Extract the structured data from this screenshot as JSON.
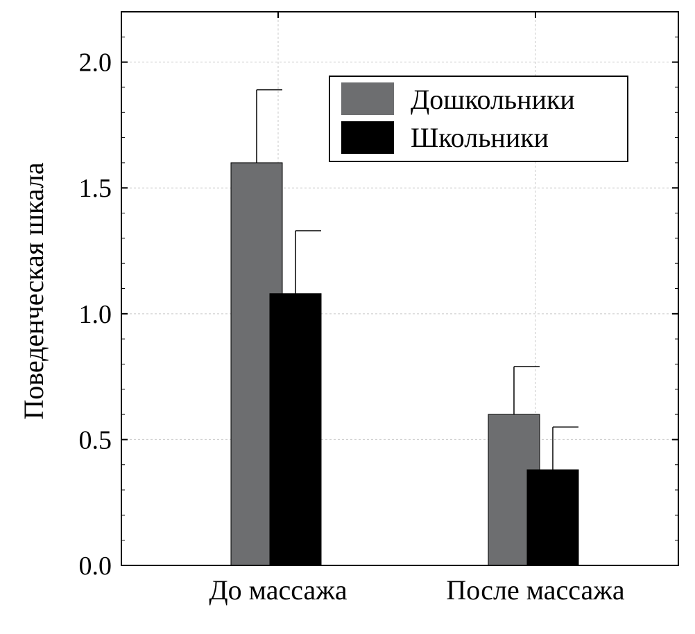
{
  "chart_data": {
    "type": "bar",
    "categories": [
      "До массажа",
      "После массажа"
    ],
    "series": [
      {
        "name": "Дошкольники",
        "color": "#6d6e70",
        "values": [
          1.6,
          0.6
        ],
        "error_upper": [
          1.89,
          0.79
        ]
      },
      {
        "name": "Школьники",
        "color": "#000000",
        "values": [
          1.08,
          0.38
        ],
        "error_upper": [
          1.33,
          0.55
        ]
      }
    ],
    "xlabel": "",
    "ylabel": "Поведенческая шкала",
    "ylim": [
      0,
      2.2
    ],
    "yticks": [
      0.0,
      0.5,
      1.0,
      1.5,
      2.0
    ],
    "ytick_labels": [
      "0.0",
      "0.5",
      "1.0",
      "1.5",
      "2.0"
    ],
    "grid": true,
    "legend_position": "top-right"
  }
}
